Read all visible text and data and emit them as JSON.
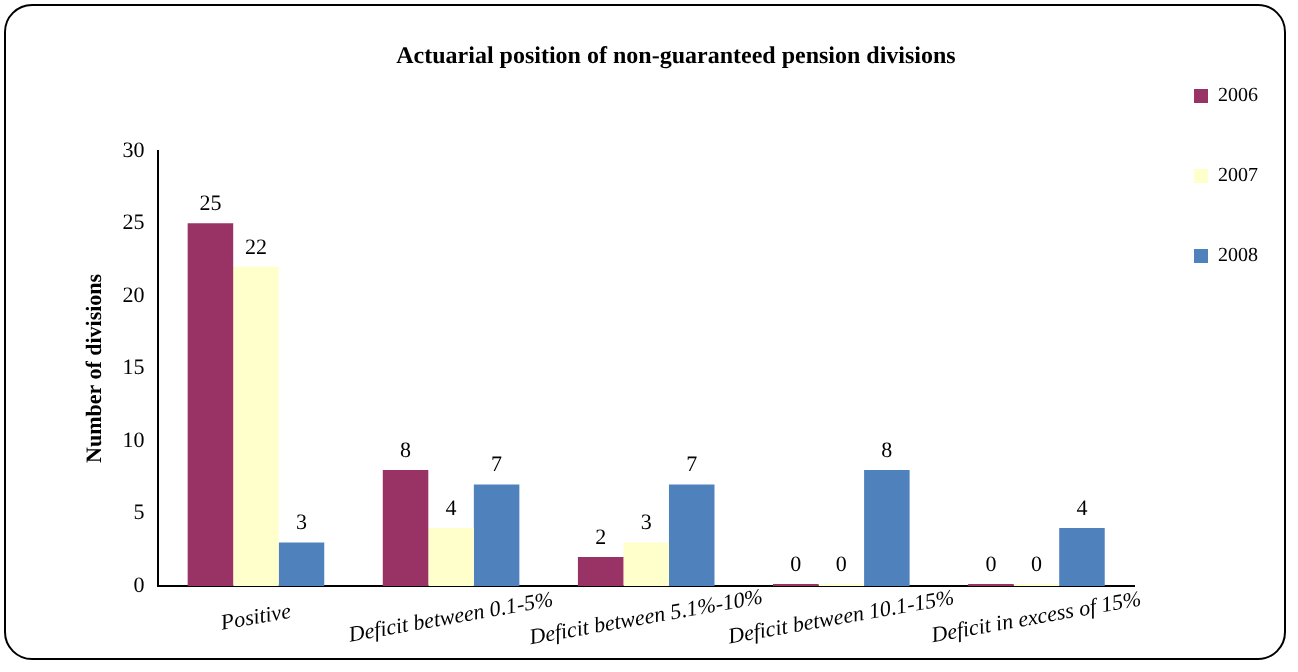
{
  "chart_data": {
    "type": "bar",
    "title": "Actuarial position of non-guaranteed pension divisions",
    "ylabel": "Number of divisions",
    "categories": [
      "Positive",
      "Deficit between 0.1-5%",
      "Deficit between 5.1%-10%",
      "Deficit between 10.1-15%",
      "Deficit in excess of 15%"
    ],
    "series": [
      {
        "name": "2006",
        "color": "#993366",
        "values": [
          25,
          8,
          2,
          0,
          0
        ]
      },
      {
        "name": "2007",
        "color": "#ffffcc",
        "values": [
          22,
          4,
          3,
          0,
          0
        ]
      },
      {
        "name": "2008",
        "color": "#4f81bd",
        "values": [
          3,
          7,
          7,
          8,
          4
        ]
      }
    ],
    "ylim": [
      0,
      30
    ],
    "yticks": [
      0,
      5,
      10,
      15,
      20,
      25,
      30
    ],
    "grid": false,
    "legend": "right",
    "data_labels": true
  }
}
